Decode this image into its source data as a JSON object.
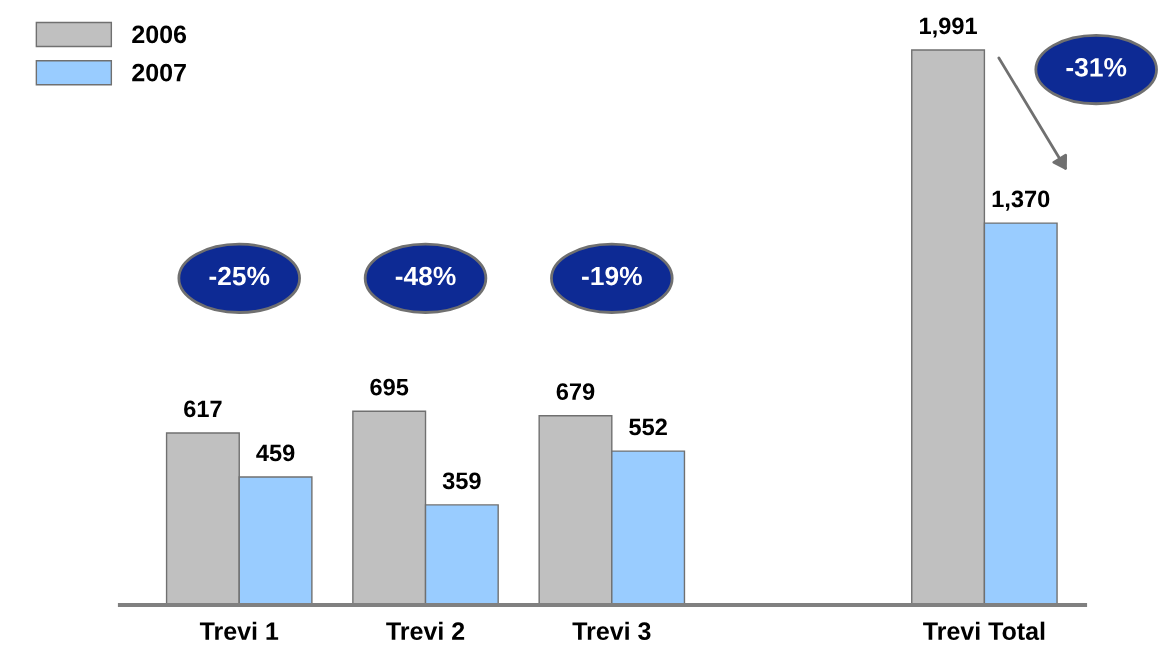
{
  "chart_data": {
    "type": "bar",
    "categories": [
      "Trevi 1",
      "Trevi 2",
      "Trevi 3",
      null,
      "Trevi Total"
    ],
    "series": [
      {
        "name": "2006",
        "color": "#c0c0c0",
        "values": [
          617,
          695,
          679,
          null,
          1991
        ],
        "value_labels": [
          "617",
          "695",
          "679",
          null,
          "1,991"
        ]
      },
      {
        "name": "2007",
        "color": "#99ccff",
        "values": [
          459,
          359,
          552,
          null,
          1370
        ],
        "value_labels": [
          "459",
          "359",
          "552",
          null,
          "1,370"
        ]
      }
    ],
    "tick_labels": "x",
    "legend": "top left",
    "grid": false,
    "annotations": [
      "-25%",
      "-48%",
      "-19%",
      "-31%"
    ]
  }
}
